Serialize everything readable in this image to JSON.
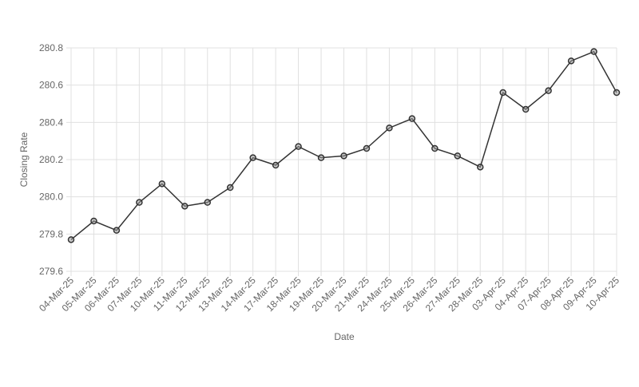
{
  "chart_data": {
    "type": "line",
    "x_label": "Date",
    "y_label": "Closing Rate",
    "categories": [
      "04-Mar-25",
      "05-Mar-25",
      "06-Mar-25",
      "07-Mar-25",
      "10-Mar-25",
      "11-Mar-25",
      "12-Mar-25",
      "13-Mar-25",
      "14-Mar-25",
      "17-Mar-25",
      "18-Mar-25",
      "19-Mar-25",
      "20-Mar-25",
      "21-Mar-25",
      "24-Mar-25",
      "25-Mar-25",
      "26-Mar-25",
      "27-Mar-25",
      "28-Mar-25",
      "03-Apr-25",
      "04-Apr-25",
      "07-Apr-25",
      "08-Apr-25",
      "09-Apr-25",
      "10-Apr-25"
    ],
    "values": [
      279.77,
      279.87,
      279.82,
      279.97,
      280.07,
      279.95,
      279.97,
      280.05,
      280.21,
      280.17,
      280.27,
      280.21,
      280.22,
      280.26,
      280.37,
      280.42,
      280.26,
      280.22,
      280.16,
      280.56,
      280.47,
      280.57,
      280.73,
      280.78,
      280.56
    ],
    "color": "#333333",
    "marker_fill": "#999999",
    "ylim": [
      279.6,
      280.8
    ],
    "yticks": [
      279.6,
      279.8,
      {
        "value": 280,
        "label": "280.0"
      },
      280.2,
      280.4,
      280.6,
      280.8
    ],
    "grid": true
  }
}
